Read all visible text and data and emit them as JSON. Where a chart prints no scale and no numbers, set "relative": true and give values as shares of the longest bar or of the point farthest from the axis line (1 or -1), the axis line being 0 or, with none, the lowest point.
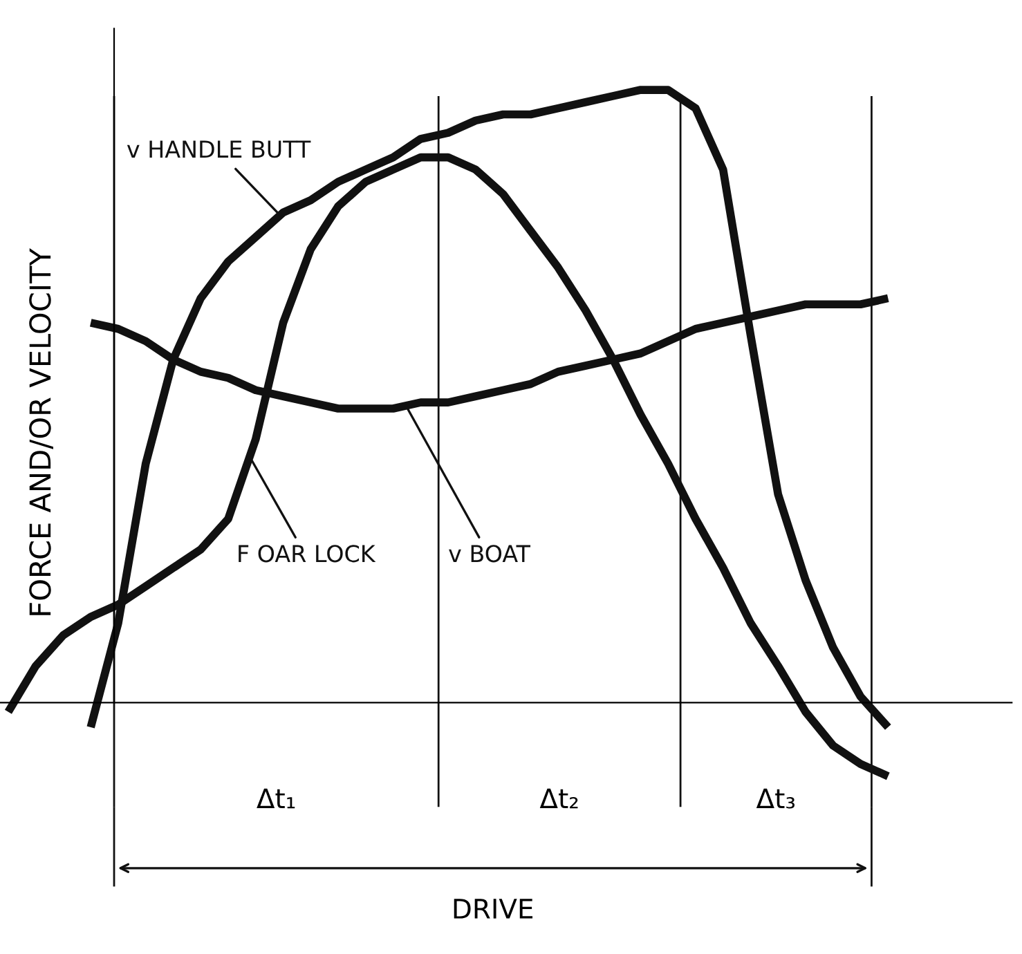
{
  "chart_data": {
    "type": "line",
    "relative": true,
    "ylabel": "FORCE AND/OR VELOCITY",
    "categories": [
      null,
      null,
      null,
      null,
      null,
      null,
      null,
      null,
      null,
      null,
      null,
      null,
      null,
      null,
      null,
      null,
      null,
      null,
      null,
      null,
      null,
      null,
      null,
      null,
      null,
      null,
      null,
      null,
      null,
      null,
      null,
      null,
      null
    ],
    "series": [
      {
        "name": "v HANDLE BUTT",
        "color": "#111111",
        "values": [
          null,
          null,
          null,
          -0.04,
          0.13,
          0.39,
          0.56,
          0.66,
          0.72,
          0.76,
          0.8,
          0.82,
          0.85,
          0.87,
          0.89,
          0.92,
          0.93,
          0.95,
          0.96,
          0.96,
          0.97,
          0.98,
          0.99,
          1.0,
          1.0,
          0.97,
          0.87,
          0.6,
          0.34,
          0.2,
          0.09,
          0.01,
          -0.04
        ]
      },
      {
        "name": "F OAR LOCK",
        "color": "#111111",
        "values": [
          -0.015,
          0.06,
          0.11,
          0.14,
          0.16,
          0.19,
          0.22,
          0.25,
          0.3,
          0.43,
          0.62,
          0.74,
          0.81,
          0.85,
          0.87,
          0.89,
          0.89,
          0.87,
          0.83,
          0.77,
          0.71,
          0.64,
          0.56,
          0.47,
          0.39,
          0.3,
          0.22,
          0.13,
          0.06,
          -0.015,
          -0.07,
          -0.1,
          -0.12
        ]
      },
      {
        "name": "v BOAT",
        "color": "#111111",
        "values": [
          null,
          null,
          null,
          0.62,
          0.61,
          0.59,
          0.56,
          0.54,
          0.53,
          0.51,
          0.5,
          0.49,
          0.48,
          0.48,
          0.48,
          0.49,
          0.49,
          0.5,
          0.51,
          0.52,
          0.54,
          0.55,
          0.56,
          0.57,
          0.59,
          0.61,
          0.62,
          0.63,
          0.64,
          0.65,
          0.65,
          0.65,
          0.66
        ]
      }
    ],
    "annotations": [
      "Δt₁",
      "Δt₂",
      "Δt₃",
      "DRIVE"
    ],
    "line_style": "solid"
  }
}
